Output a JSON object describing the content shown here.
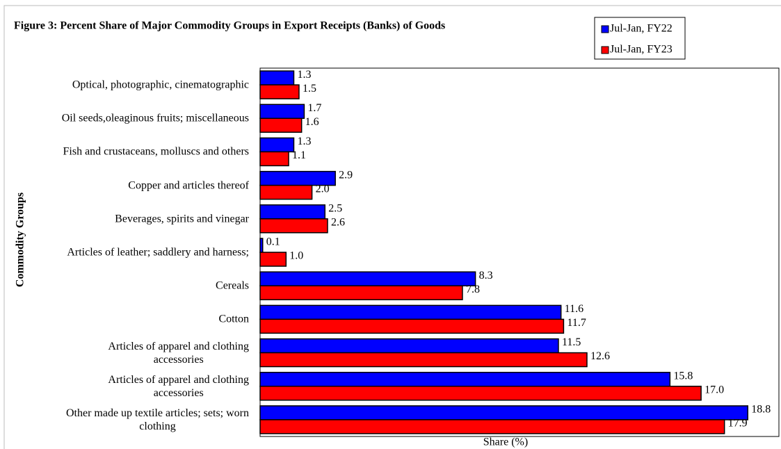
{
  "chart_data": {
    "type": "barh",
    "title": "Figure 3: Percent Share of Major Commodity Groups in Export Receipts (Banks) of Goods",
    "xlabel": "Share (%)",
    "ylabel": "Commodity Groups",
    "categories": [
      "Optical, photographic, cinematographic",
      "Oil seeds,oleaginous fruits; miscellaneous",
      "Fish and crustaceans, molluscs and others",
      "Copper and articles thereof",
      "Beverages, spirits and vinegar",
      "Articles of leather; saddlery and harness;",
      "Cereals",
      "Cotton",
      "Articles of apparel and clothing\naccessories",
      "Articles of apparel and clothing\naccessories",
      "Other made up textile articles; sets; worn\nclothing"
    ],
    "series": [
      {
        "name": "Jul-Jan, FY22",
        "color": "#0000ff",
        "values": [
          1.3,
          1.7,
          1.3,
          2.9,
          2.5,
          0.1,
          8.3,
          11.6,
          11.5,
          15.8,
          18.8
        ],
        "value_labels": [
          "1.3",
          "1.7",
          "1.3",
          "2.9",
          "2.5",
          "0.1",
          "8.3",
          "11.6",
          "11.5",
          "15.8",
          "18.8"
        ]
      },
      {
        "name": "Jul-Jan, FY23",
        "color": "#ff0000",
        "values": [
          1.5,
          1.6,
          1.1,
          2.0,
          2.6,
          1.0,
          7.8,
          11.7,
          12.6,
          17.0,
          17.9
        ],
        "value_labels": [
          "1.5",
          "1.6",
          "1.1",
          "2.0",
          "2.6",
          "1.0",
          "7.8",
          "11.7",
          "12.6",
          "17.0",
          "17.9"
        ]
      }
    ],
    "xlim": [
      0,
      20
    ],
    "legend": "top-right"
  }
}
